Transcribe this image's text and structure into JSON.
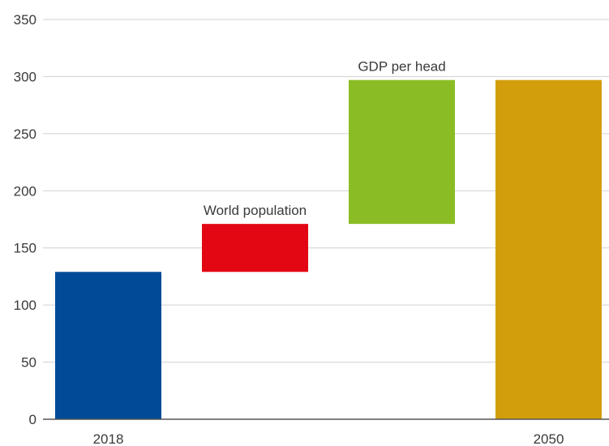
{
  "chart_data": {
    "type": "bar",
    "subtype": "waterfall",
    "categories": [
      "2018",
      "",
      "",
      "2050"
    ],
    "bars": [
      {
        "base": 0,
        "value": 129,
        "color": "#004a97"
      },
      {
        "base": 129,
        "value": 171,
        "color": "#e30613",
        "annotation": "World population"
      },
      {
        "base": 171,
        "value": 297,
        "color": "#8abd24",
        "annotation": "GDP per head"
      },
      {
        "base": 0,
        "value": 297,
        "color": "#d39e0c"
      }
    ],
    "yticks": [
      0,
      50,
      100,
      150,
      200,
      250,
      300,
      350
    ],
    "ylim": [
      0,
      350
    ],
    "grid": true,
    "title": "",
    "xlabel": "",
    "ylabel": ""
  }
}
